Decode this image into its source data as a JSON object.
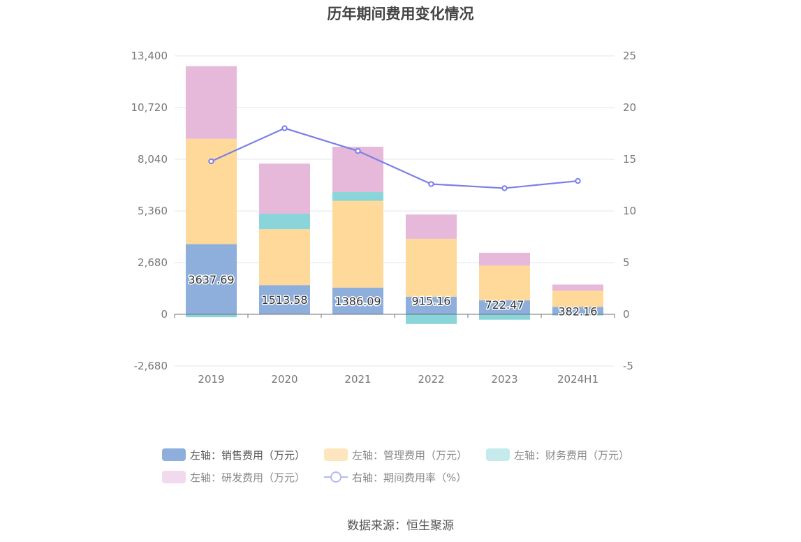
{
  "source_text": "数据来源：恒生聚源",
  "legend": [
    {
      "label": "左轴：销售费用（万元）",
      "color": "#8eaedc"
    },
    {
      "label": "左轴：管理费用（万元）",
      "color": "#fde5bd"
    },
    {
      "label": "左轴：财务费用（万元）",
      "color": "#c4eaec"
    },
    {
      "label": "左轴：研发费用（万元）",
      "color": "#f1d9ee"
    },
    {
      "label": "右轴：期间费用率（%）",
      "color": "#b6b8f3"
    }
  ],
  "chart_data": {
    "type": "bar",
    "title": "历年期间费用变化情况",
    "categories": [
      "2019",
      "2020",
      "2021",
      "2022",
      "2023",
      "2024H1"
    ],
    "left_axis": {
      "min": -2680,
      "max": 13400,
      "ticks": [
        "-2,680",
        "0",
        "2,680",
        "5,360",
        "8,040",
        "10,720",
        "13,400"
      ]
    },
    "right_axis": {
      "min": -5,
      "max": 25,
      "ticks": [
        "-5",
        "0",
        "5",
        "10",
        "15",
        "20",
        "25"
      ]
    },
    "series": [
      {
        "name": "左轴：销售费用（万元）",
        "axis": "left",
        "stack": true,
        "color": "#8eaedc",
        "values": [
          3637.69,
          1513.58,
          1386.09,
          915.16,
          722.47,
          382.16
        ],
        "labels": [
          "3637.69",
          "1513.58",
          "1386.09",
          "915.16",
          "722.47",
          "382.16"
        ]
      },
      {
        "name": "左轴：管理费用（万元）",
        "axis": "left",
        "stack": true,
        "color": "#fed99a",
        "values": [
          5460,
          2900,
          4500,
          3000,
          1800,
          850
        ]
      },
      {
        "name": "左轴：财务费用（万元）",
        "axis": "left",
        "stack": true,
        "color": "#89d5d9",
        "values": [
          -150,
          800,
          450,
          -500,
          -280,
          -60
        ]
      },
      {
        "name": "左轴：研发费用（万元）",
        "axis": "left",
        "stack": true,
        "color": "#e6b9da",
        "values": [
          3770,
          2600,
          2350,
          1260,
          670,
          310
        ]
      },
      {
        "name": "右轴：期间费用率（%）",
        "axis": "right",
        "type": "line",
        "color": "#7b7fe8",
        "values": [
          14.8,
          18.0,
          15.8,
          12.6,
          12.2,
          12.9
        ]
      }
    ],
    "grid": true,
    "legend_position": "bottom"
  }
}
